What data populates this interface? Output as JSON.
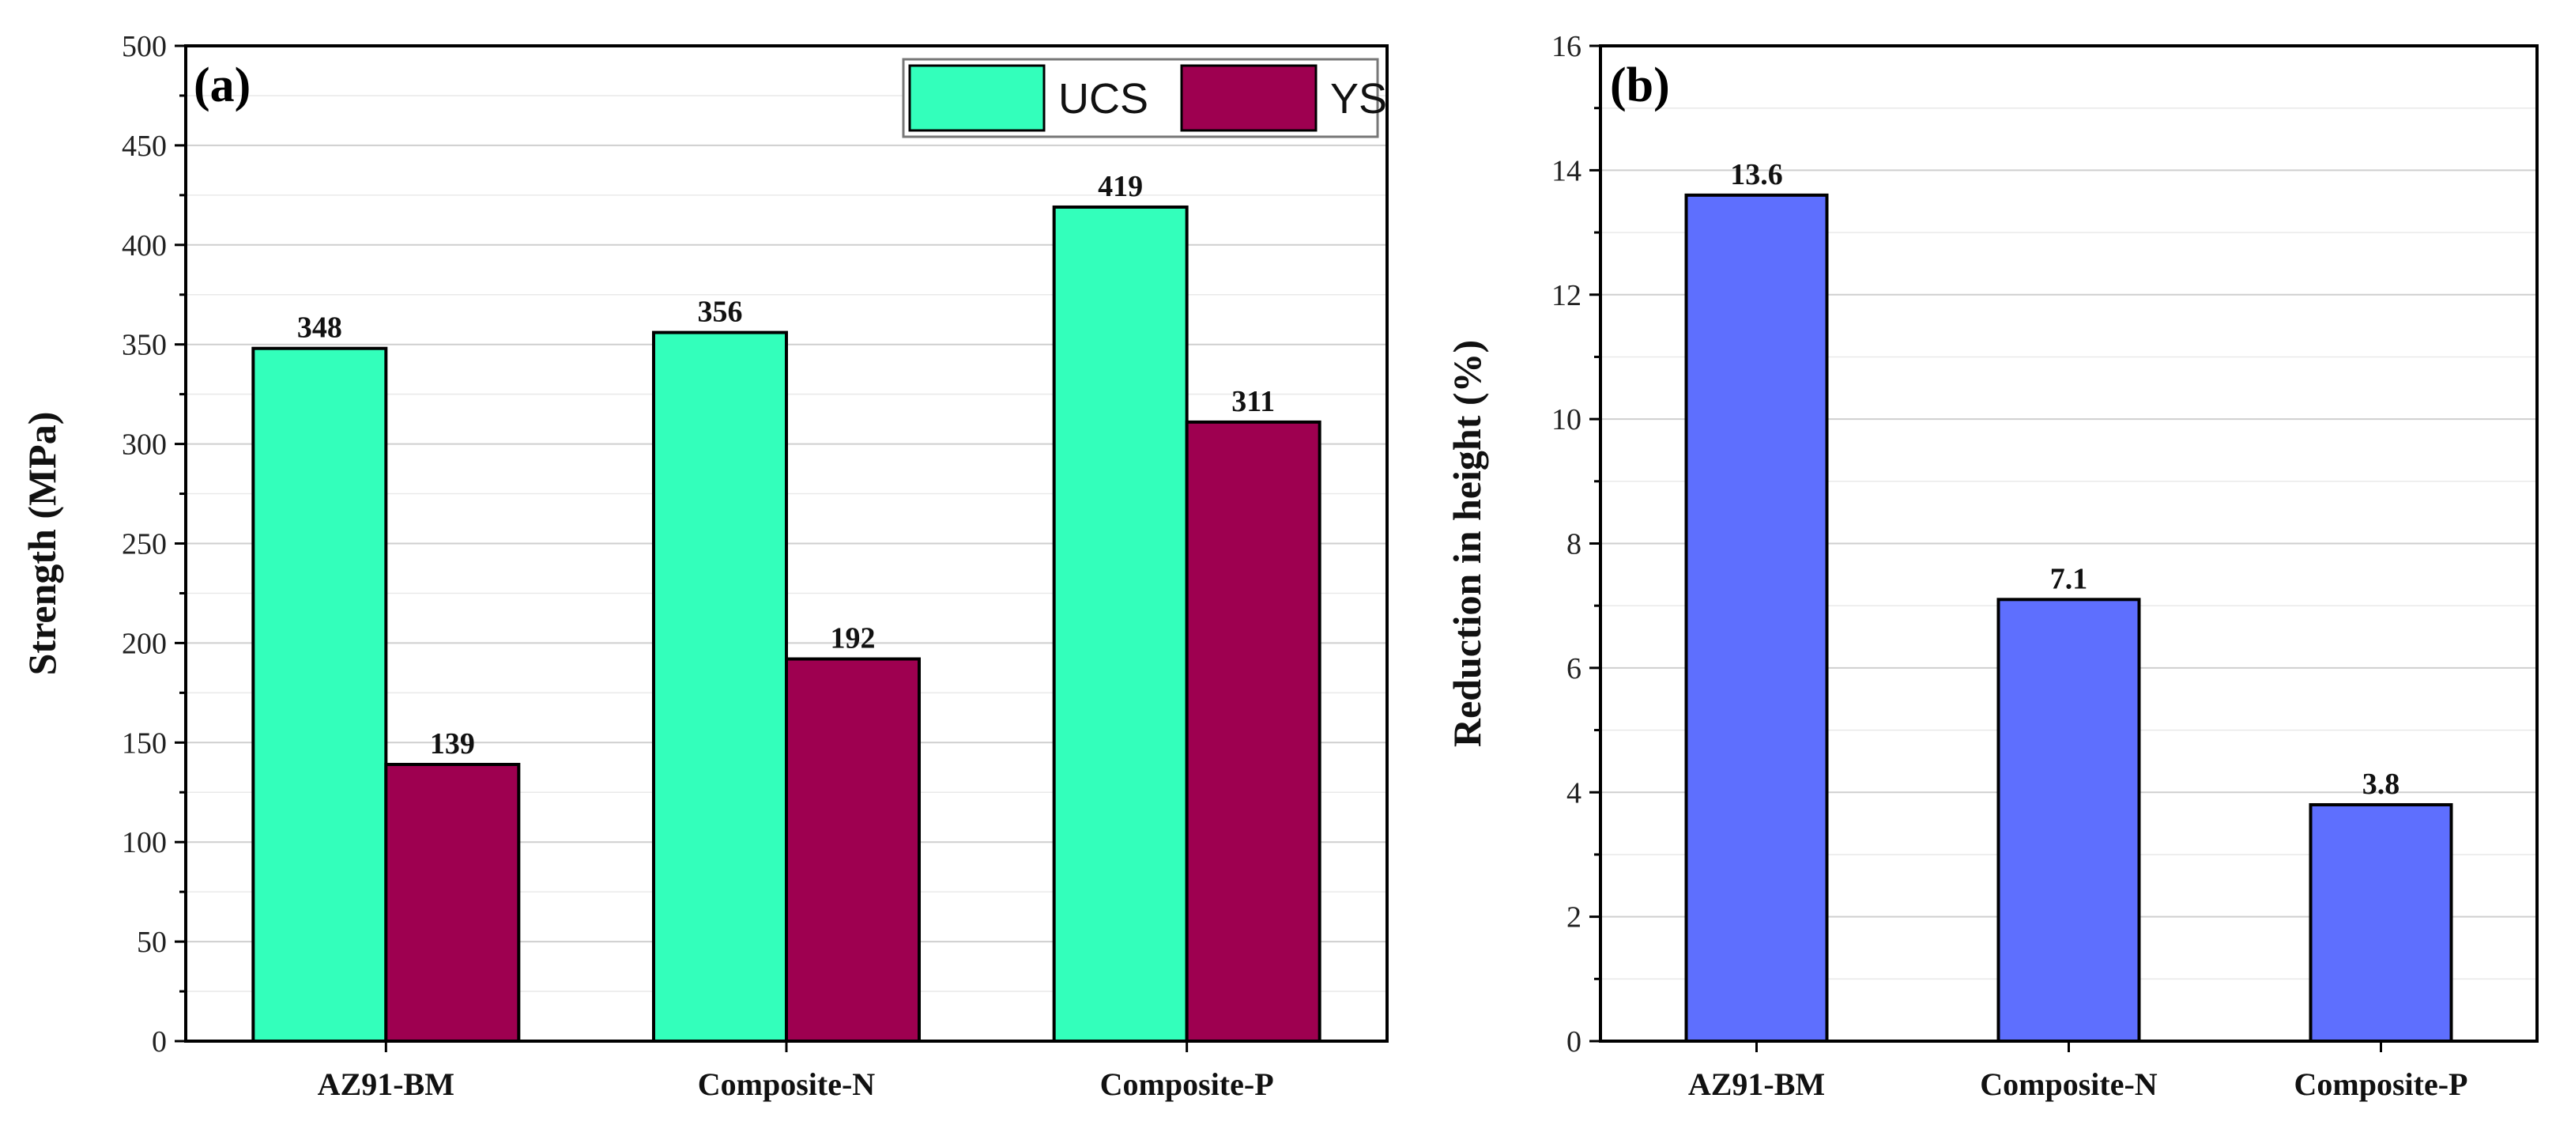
{
  "chart_data": [
    {
      "panel_label": "(a)",
      "type": "bar",
      "ylabel": "Strength (MPa)",
      "xlabel": "",
      "ylim": [
        0,
        500
      ],
      "ytick_step": 50,
      "grid": true,
      "legend_position": "top-right",
      "categories": [
        "AZ91-BM",
        "Composite-N",
        "Composite-P"
      ],
      "series": [
        {
          "name": "UCS",
          "color": "#33ffbb",
          "values": [
            348,
            356,
            419
          ],
          "labels": [
            "348",
            "356",
            "419"
          ]
        },
        {
          "name": "YS",
          "color": "#9e0050",
          "values": [
            139,
            192,
            311
          ],
          "labels": [
            "139",
            "192",
            "311"
          ]
        }
      ]
    },
    {
      "panel_label": "(b)",
      "type": "bar",
      "ylabel": "Reduction in height (%)",
      "xlabel": "",
      "ylim": [
        0,
        16
      ],
      "ytick_step": 2,
      "grid": true,
      "categories": [
        "AZ91-BM",
        "Composite-N",
        "Composite-P"
      ],
      "series": [
        {
          "name": "Reduction in height",
          "color": "#5e6ffe",
          "values": [
            13.6,
            7.1,
            3.8
          ],
          "labels": [
            "13.6",
            "7.1",
            "3.8"
          ]
        }
      ]
    }
  ]
}
